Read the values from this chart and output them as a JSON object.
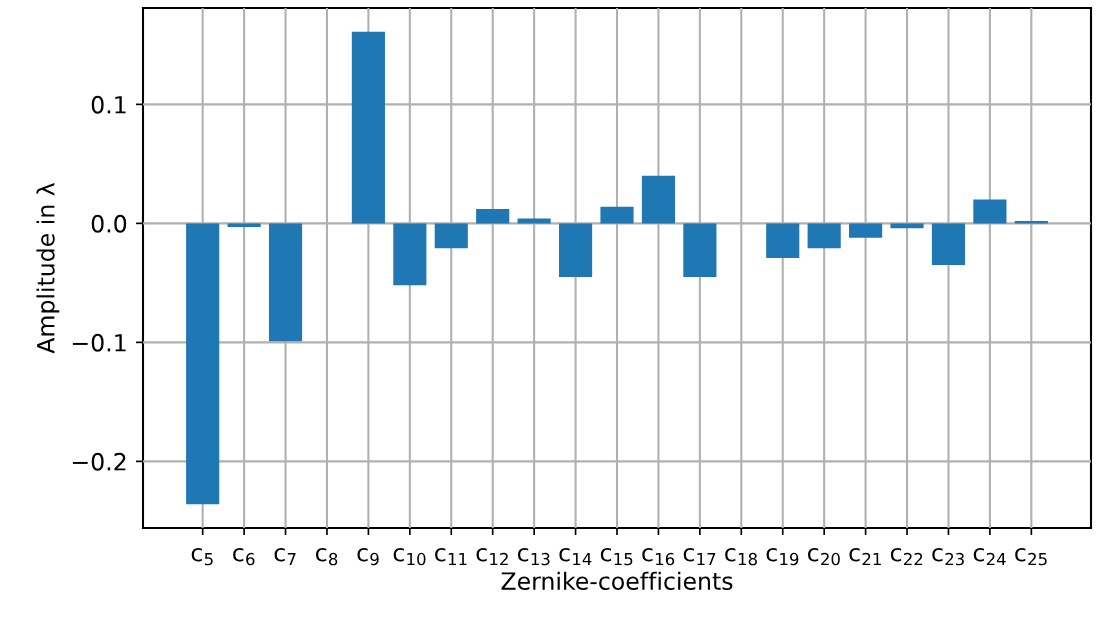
{
  "chart_data": {
    "type": "bar",
    "xlabel": "Zernike-coefficients",
    "ylabel": "Amplitude in λ",
    "categories": [
      "c$_{5}$",
      "c$_{6}$",
      "c$_{7}$",
      "c$_{8}$",
      "c$_{9}$",
      "c$_{10}$",
      "c$_{11}$",
      "c$_{12}$",
      "c$_{13}$",
      "c$_{14}$",
      "c$_{15}$",
      "c$_{16}$",
      "c$_{17}$",
      "c$_{18}$",
      "c$_{19}$",
      "c$_{20}$",
      "c$_{21}$",
      "c$_{22}$",
      "c$_{23}$",
      "c$_{24}$",
      "c$_{25}$"
    ],
    "values": [
      -0.236,
      -0.003,
      -0.099,
      0.0,
      0.161,
      -0.052,
      -0.021,
      0.012,
      0.004,
      -0.045,
      0.014,
      0.04,
      -0.045,
      0.0,
      -0.029,
      -0.021,
      -0.012,
      -0.004,
      -0.035,
      0.02,
      0.002
    ],
    "color": "#1f77b4",
    "ylim": [
      -0.256,
      0.181
    ],
    "yticks": [
      {
        "value": -0.2,
        "label": "−0.2"
      },
      {
        "value": -0.1,
        "label": "−0.1"
      },
      {
        "value": 0.0,
        "label": "0.0"
      },
      {
        "value": 0.1,
        "label": "0.1"
      }
    ],
    "grid": true,
    "legend": false
  }
}
